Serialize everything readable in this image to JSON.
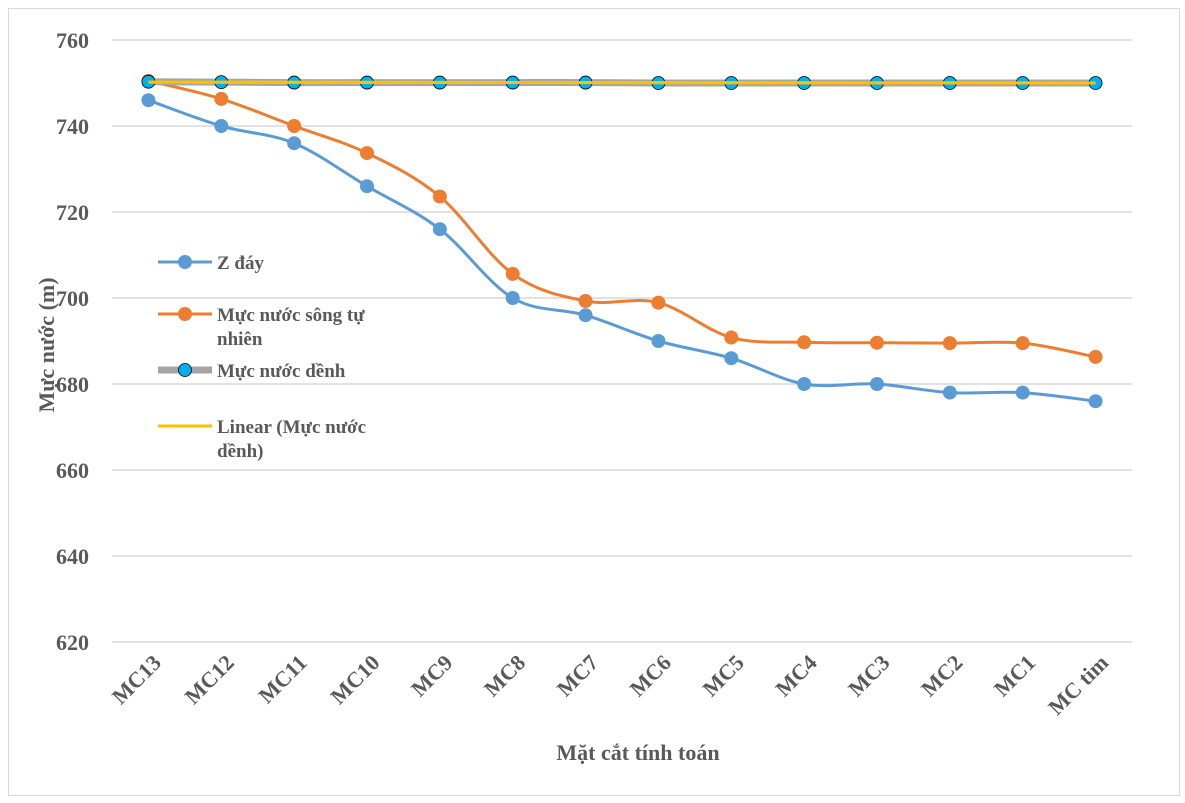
{
  "chart_data": {
    "type": "line",
    "title": "",
    "xlabel": "Mặt cắt tính toán",
    "ylabel": "Mực nước (m)",
    "ylim": [
      620,
      760
    ],
    "yticks": [
      620,
      640,
      660,
      680,
      700,
      720,
      740,
      760
    ],
    "grid": "horizontal",
    "legend_position": "left",
    "categories": [
      "MC13",
      "MC12",
      "MC11",
      "MC10",
      "MC9",
      "MC8",
      "MC7",
      "MC6",
      "MC5",
      "MC4",
      "MC3",
      "MC2",
      "MC1",
      "MC tim"
    ],
    "series": [
      {
        "name": "Z đáy",
        "color": "#5b9bd5",
        "values": [
          746,
          740,
          736,
          726,
          716,
          700,
          696,
          690,
          686,
          680,
          680,
          678,
          678,
          676
        ]
      },
      {
        "name": "Mực nước sông tự nhiên",
        "color": "#ed7d31",
        "values": [
          750.5,
          746.3,
          740,
          733.7,
          723.6,
          705.6,
          699.3,
          698.9,
          690.8,
          689.7,
          689.6,
          689.5,
          689.5,
          686.3
        ]
      },
      {
        "name": "Mực nước dềnh",
        "color": "#a5a5a5",
        "marker_color": "#00b0f0",
        "values": [
          750.3,
          750.2,
          750.1,
          750.1,
          750.1,
          750.1,
          750.1,
          750.0,
          750.0,
          750.0,
          750.0,
          750.0,
          750.0,
          750.0
        ]
      },
      {
        "name": "Linear (Mực nước dềnh)",
        "color": "#ffc000",
        "trendline": true,
        "values": [
          750.2,
          750.2,
          750.2,
          750.1,
          750.1,
          750.1,
          750.1,
          750.1,
          750.1,
          750.1,
          750.0,
          750.0,
          750.0,
          750.0
        ]
      }
    ]
  }
}
